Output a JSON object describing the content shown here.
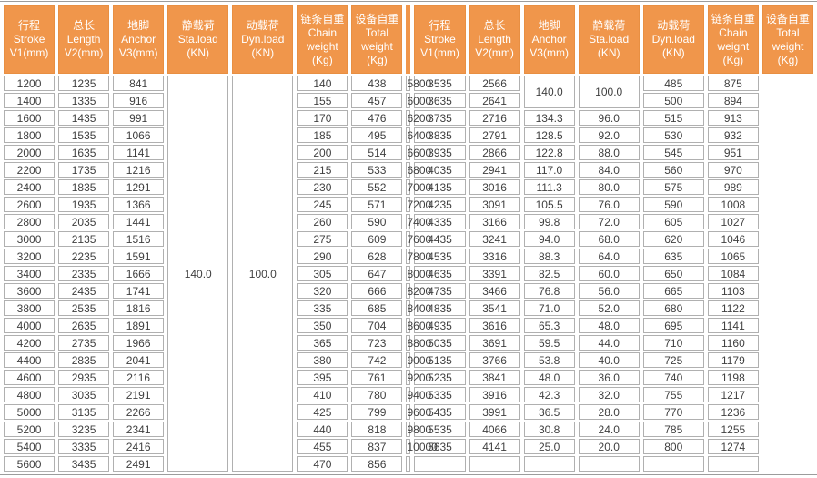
{
  "table": {
    "columns": [
      {
        "key": "stroke",
        "lines": [
          "行程",
          "Stroke",
          "V1(mm)"
        ]
      },
      {
        "key": "length",
        "lines": [
          "总长",
          "Length",
          "V2(mm)"
        ]
      },
      {
        "key": "anchor",
        "lines": [
          "地脚",
          "Anchor",
          "V3(mm)"
        ]
      },
      {
        "key": "sta-load",
        "lines": [
          "静载荷",
          "Sta.load",
          "(KN)"
        ]
      },
      {
        "key": "dyn-load",
        "lines": [
          "动载荷",
          "Dyn.load",
          "(KN)"
        ]
      },
      {
        "key": "chain-weight",
        "lines": [
          "链条自重",
          "Chain",
          "weight",
          "(Kg)"
        ]
      },
      {
        "key": "total-weight",
        "lines": [
          "设备自重",
          "Total",
          "weight",
          "(Kg)"
        ]
      }
    ],
    "left": {
      "sta_load_merged": "140.0",
      "dyn_load_merged": "100.0",
      "rows": [
        [
          "1200",
          "1235",
          "841",
          "140",
          "438"
        ],
        [
          "1400",
          "1335",
          "916",
          "155",
          "457"
        ],
        [
          "1600",
          "1435",
          "991",
          "170",
          "476"
        ],
        [
          "1800",
          "1535",
          "1066",
          "185",
          "495"
        ],
        [
          "2000",
          "1635",
          "1141",
          "200",
          "514"
        ],
        [
          "2200",
          "1735",
          "1216",
          "215",
          "533"
        ],
        [
          "2400",
          "1835",
          "1291",
          "230",
          "552"
        ],
        [
          "2600",
          "1935",
          "1366",
          "245",
          "571"
        ],
        [
          "2800",
          "2035",
          "1441",
          "260",
          "590"
        ],
        [
          "3000",
          "2135",
          "1516",
          "275",
          "609"
        ],
        [
          "3200",
          "2235",
          "1591",
          "290",
          "628"
        ],
        [
          "3400",
          "2335",
          "1666",
          "305",
          "647"
        ],
        [
          "3600",
          "2435",
          "1741",
          "320",
          "666"
        ],
        [
          "3800",
          "2535",
          "1816",
          "335",
          "685"
        ],
        [
          "4000",
          "2635",
          "1891",
          "350",
          "704"
        ],
        [
          "4200",
          "2735",
          "1966",
          "365",
          "723"
        ],
        [
          "4400",
          "2835",
          "2041",
          "380",
          "742"
        ],
        [
          "4600",
          "2935",
          "2116",
          "395",
          "761"
        ],
        [
          "4800",
          "3035",
          "2191",
          "410",
          "780"
        ],
        [
          "5000",
          "3135",
          "2266",
          "425",
          "799"
        ],
        [
          "5200",
          "3235",
          "2341",
          "440",
          "818"
        ],
        [
          "5400",
          "3335",
          "2416",
          "455",
          "837"
        ],
        [
          "5600",
          "3435",
          "2491",
          "470",
          "856"
        ]
      ]
    },
    "right": {
      "sta_load_merged": "140.0",
      "dyn_load_merged": "100.0",
      "merged_span": 2,
      "rows": [
        [
          "5800",
          "3535",
          "2566",
          null,
          null,
          "485",
          "875"
        ],
        [
          "6000",
          "3635",
          "2641",
          null,
          null,
          "500",
          "894"
        ],
        [
          "6200",
          "3735",
          "2716",
          "134.3",
          "96.0",
          "515",
          "913"
        ],
        [
          "6400",
          "3835",
          "2791",
          "128.5",
          "92.0",
          "530",
          "932"
        ],
        [
          "6600",
          "3935",
          "2866",
          "122.8",
          "88.0",
          "545",
          "951"
        ],
        [
          "6800",
          "4035",
          "2941",
          "117.0",
          "84.0",
          "560",
          "970"
        ],
        [
          "7000",
          "4135",
          "3016",
          "111.3",
          "80.0",
          "575",
          "989"
        ],
        [
          "7200",
          "4235",
          "3091",
          "105.5",
          "76.0",
          "590",
          "1008"
        ],
        [
          "7400",
          "4335",
          "3166",
          "99.8",
          "72.0",
          "605",
          "1027"
        ],
        [
          "7600",
          "4435",
          "3241",
          "94.0",
          "68.0",
          "620",
          "1046"
        ],
        [
          "7800",
          "4535",
          "3316",
          "88.3",
          "64.0",
          "635",
          "1065"
        ],
        [
          "8000",
          "4635",
          "3391",
          "82.5",
          "60.0",
          "650",
          "1084"
        ],
        [
          "8200",
          "4735",
          "3466",
          "76.8",
          "56.0",
          "665",
          "1103"
        ],
        [
          "8400",
          "4835",
          "3541",
          "71.0",
          "52.0",
          "680",
          "1122"
        ],
        [
          "8600",
          "4935",
          "3616",
          "65.3",
          "48.0",
          "695",
          "1141"
        ],
        [
          "8800",
          "5035",
          "3691",
          "59.5",
          "44.0",
          "710",
          "1160"
        ],
        [
          "9000",
          "5135",
          "3766",
          "53.8",
          "40.0",
          "725",
          "1179"
        ],
        [
          "9200",
          "5235",
          "3841",
          "48.0",
          "36.0",
          "740",
          "1198"
        ],
        [
          "9400",
          "5335",
          "3916",
          "42.3",
          "32.0",
          "755",
          "1217"
        ],
        [
          "9600",
          "5435",
          "3991",
          "36.5",
          "28.0",
          "770",
          "1236"
        ],
        [
          "9800",
          "5535",
          "4066",
          "30.8",
          "24.0",
          "785",
          "1255"
        ],
        [
          "10000",
          "5635",
          "4141",
          "25.0",
          "20.0",
          "800",
          "1274"
        ],
        [
          "",
          "",
          "",
          "",
          "",
          "",
          ""
        ]
      ]
    },
    "colors": {
      "header_bg": "#f0964b",
      "header_text": "#ffffff",
      "header_border": "#e88f42",
      "cell_border": "#b0b0b0",
      "cell_text": "#3f3f3f",
      "divider": "#f0964b",
      "rule": "#9c9c9c"
    }
  }
}
